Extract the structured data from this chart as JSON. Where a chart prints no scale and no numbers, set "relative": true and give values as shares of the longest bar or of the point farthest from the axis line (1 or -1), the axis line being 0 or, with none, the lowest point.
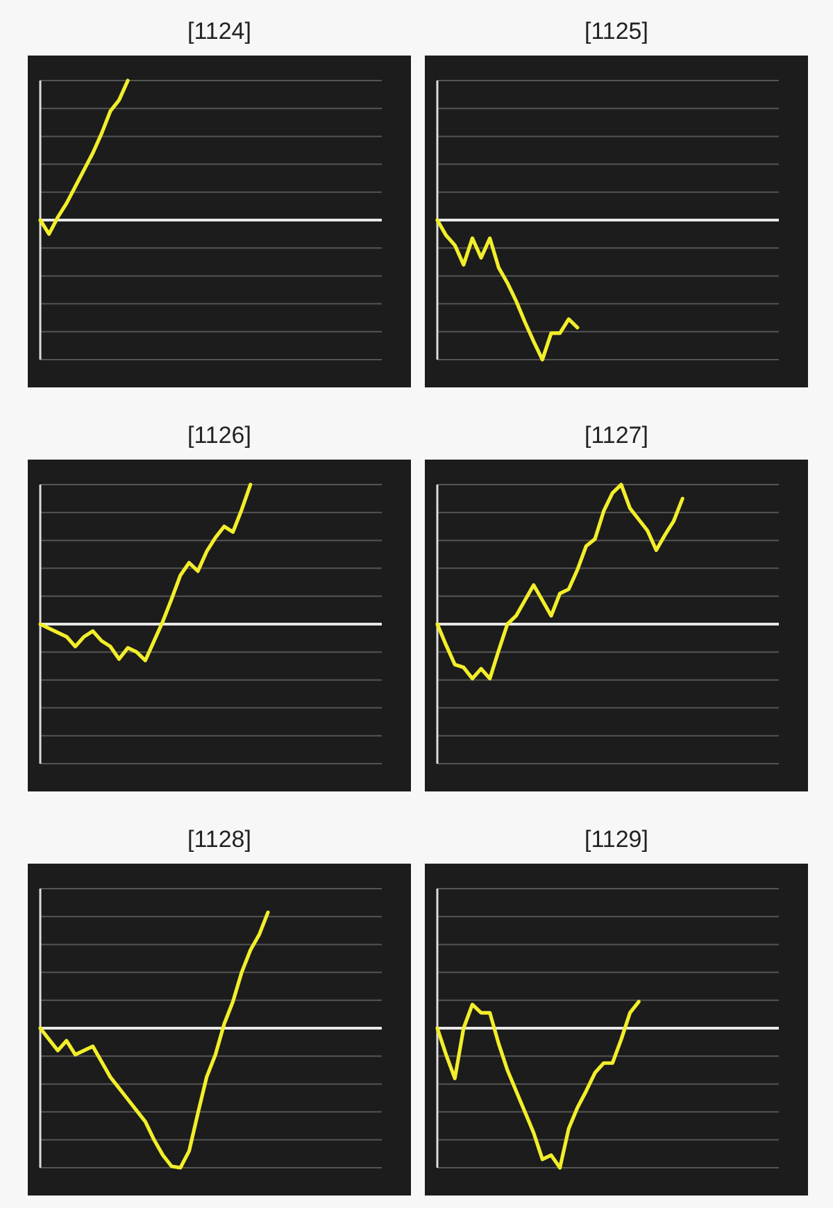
{
  "chart_data": [
    {
      "type": "line",
      "title": "[1124]",
      "relative": true,
      "grid": true,
      "color": "#f2ee2a",
      "categories": [
        null,
        null,
        null,
        null,
        null,
        null,
        null,
        null,
        null,
        null,
        null,
        null,
        null,
        null,
        null,
        null,
        null,
        null,
        null,
        null,
        null,
        null,
        null,
        null,
        null,
        null,
        null,
        null,
        null,
        null,
        null,
        null,
        null,
        null,
        null,
        null,
        null,
        null,
        null,
        null
      ],
      "values": [
        0,
        -0.1,
        0.02,
        0.12,
        0.24,
        0.36,
        0.48,
        0.62,
        0.78,
        0.86,
        1,
        null,
        null,
        null,
        null,
        null,
        null,
        null,
        null,
        null,
        null,
        null,
        null,
        null,
        null,
        null,
        null,
        null,
        null,
        null,
        null,
        null,
        null,
        null,
        null,
        null,
        null,
        null,
        null,
        null
      ]
    },
    {
      "type": "line",
      "title": "[1125]",
      "relative": true,
      "grid": true,
      "color": "#f2ee2a",
      "categories": [
        null,
        null,
        null,
        null,
        null,
        null,
        null,
        null,
        null,
        null,
        null,
        null,
        null,
        null,
        null,
        null,
        null,
        null,
        null,
        null,
        null,
        null,
        null,
        null,
        null,
        null,
        null,
        null,
        null,
        null,
        null,
        null,
        null,
        null,
        null,
        null,
        null,
        null,
        null,
        null
      ],
      "values": [
        0,
        -0.11,
        -0.18,
        -0.32,
        -0.13,
        -0.27,
        -0.13,
        -0.34,
        -0.45,
        -0.58,
        -0.73,
        -0.87,
        -1,
        -0.81,
        -0.81,
        -0.71,
        -0.77,
        null,
        null,
        null,
        null,
        null,
        null,
        null,
        null,
        null,
        null,
        null,
        null,
        null,
        null,
        null,
        null,
        null,
        null,
        null,
        null,
        null,
        null,
        null
      ]
    },
    {
      "type": "line",
      "title": "[1126]",
      "relative": true,
      "grid": true,
      "color": "#f2ee2a",
      "categories": [
        null,
        null,
        null,
        null,
        null,
        null,
        null,
        null,
        null,
        null,
        null,
        null,
        null,
        null,
        null,
        null,
        null,
        null,
        null,
        null,
        null,
        null,
        null,
        null,
        null,
        null,
        null,
        null,
        null,
        null,
        null,
        null,
        null,
        null,
        null,
        null,
        null,
        null,
        null,
        null
      ],
      "values": [
        0,
        -0.03,
        -0.06,
        -0.09,
        -0.16,
        -0.09,
        -0.05,
        -0.12,
        -0.16,
        -0.25,
        -0.17,
        -0.2,
        -0.26,
        -0.12,
        0.02,
        0.18,
        0.35,
        0.44,
        0.38,
        0.52,
        0.62,
        0.7,
        0.66,
        0.82,
        1,
        null,
        null,
        null,
        null,
        null,
        null,
        null,
        null,
        null,
        null,
        null,
        null,
        null,
        null,
        null
      ]
    },
    {
      "type": "line",
      "title": "[1127]",
      "relative": true,
      "grid": true,
      "color": "#f2ee2a",
      "categories": [
        null,
        null,
        null,
        null,
        null,
        null,
        null,
        null,
        null,
        null,
        null,
        null,
        null,
        null,
        null,
        null,
        null,
        null,
        null,
        null,
        null,
        null,
        null,
        null,
        null,
        null,
        null,
        null,
        null,
        null,
        null,
        null,
        null,
        null,
        null,
        null,
        null,
        null,
        null,
        null
      ],
      "values": [
        0,
        -0.15,
        -0.29,
        -0.31,
        -0.39,
        -0.32,
        -0.39,
        -0.19,
        0,
        0.06,
        0.17,
        0.28,
        0.17,
        0.06,
        0.22,
        0.25,
        0.39,
        0.56,
        0.61,
        0.81,
        0.94,
        1,
        0.83,
        0.75,
        0.67,
        0.53,
        0.64,
        0.74,
        0.9,
        null,
        null,
        null,
        null,
        null,
        null,
        null,
        null,
        null,
        null,
        null
      ]
    },
    {
      "type": "line",
      "title": "[1128]",
      "relative": true,
      "grid": true,
      "color": "#f2ee2a",
      "categories": [
        null,
        null,
        null,
        null,
        null,
        null,
        null,
        null,
        null,
        null,
        null,
        null,
        null,
        null,
        null,
        null,
        null,
        null,
        null,
        null,
        null,
        null,
        null,
        null,
        null,
        null,
        null,
        null,
        null,
        null,
        null,
        null,
        null,
        null,
        null,
        null,
        null,
        null,
        null,
        null
      ],
      "values": [
        0,
        -0.08,
        -0.16,
        -0.09,
        -0.19,
        -0.16,
        -0.13,
        -0.24,
        -0.35,
        -0.43,
        -0.51,
        -0.59,
        -0.67,
        -0.8,
        -0.91,
        -0.99,
        -1,
        -0.88,
        -0.61,
        -0.35,
        -0.19,
        0.03,
        0.19,
        0.4,
        0.56,
        0.67,
        0.83,
        null,
        null,
        null,
        null,
        null,
        null,
        null,
        null,
        null,
        null,
        null,
        null,
        null
      ]
    },
    {
      "type": "line",
      "title": "[1129]",
      "relative": true,
      "grid": true,
      "color": "#f2ee2a",
      "categories": [
        null,
        null,
        null,
        null,
        null,
        null,
        null,
        null,
        null,
        null,
        null,
        null,
        null,
        null,
        null,
        null,
        null,
        null,
        null,
        null,
        null,
        null,
        null,
        null,
        null,
        null,
        null,
        null,
        null,
        null,
        null,
        null,
        null,
        null,
        null,
        null,
        null,
        null,
        null,
        null
      ],
      "values": [
        0,
        -0.19,
        -0.36,
        0,
        0.17,
        0.11,
        0.11,
        -0.11,
        -0.3,
        -0.45,
        -0.6,
        -0.75,
        -0.94,
        -0.91,
        -1,
        -0.72,
        -0.57,
        -0.45,
        -0.32,
        -0.25,
        -0.25,
        -0.08,
        0.11,
        0.19,
        null,
        null,
        null,
        null,
        null,
        null,
        null,
        null,
        null,
        null,
        null,
        null,
        null,
        null,
        null,
        null
      ]
    }
  ]
}
